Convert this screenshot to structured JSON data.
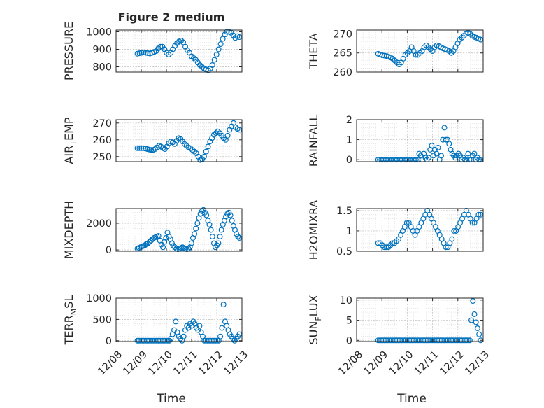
{
  "figure": {
    "title": "Figure 2 medium",
    "xlabel": "Time",
    "x_tick_labels": [
      "12/08",
      "12/09",
      "12/10",
      "12/11",
      "12/12",
      "12/13"
    ]
  },
  "colors": {
    "marker": "#0072BD",
    "axis": "#262626",
    "grid": "#bfbfbf",
    "minor_grid": "#dcdcdc"
  },
  "chart_data": [
    {
      "type": "scatter",
      "ylabel": "PRESSURE",
      "xlim": [
        8,
        13
      ],
      "ylim": [
        770,
        1010
      ],
      "yticks": [
        800,
        900,
        1000
      ],
      "ytick_labels": [
        "800",
        "900",
        "1000"
      ],
      "grid": true,
      "x_start": 8.85,
      "x_end": 12.9,
      "y": [
        875,
        878,
        880,
        882,
        880,
        878,
        876,
        880,
        885,
        890,
        905,
        915,
        915,
        900,
        880,
        870,
        880,
        900,
        920,
        935,
        945,
        950,
        940,
        915,
        895,
        880,
        860,
        850,
        840,
        825,
        810,
        800,
        790,
        785,
        780,
        790,
        810,
        840,
        870,
        900,
        930,
        960,
        985,
        1000,
        1000,
        995,
        980,
        965,
        975,
        970
      ]
    },
    {
      "type": "scatter",
      "ylabel": "THETA",
      "xlim": [
        8,
        13
      ],
      "ylim": [
        260,
        271
      ],
      "yticks": [
        260,
        265,
        270
      ],
      "ytick_labels": [
        "260",
        "265",
        "270"
      ],
      "grid": true,
      "x_start": 8.85,
      "x_end": 12.9,
      "y": [
        264.8,
        264.6,
        264.4,
        264.3,
        264.2,
        264.0,
        263.8,
        263.5,
        263.0,
        262.5,
        262.0,
        262.5,
        263.5,
        264.5,
        265.0,
        265.5,
        266.5,
        265.5,
        264.5,
        264.5,
        265.0,
        265.5,
        266.5,
        267.0,
        266.5,
        266.0,
        265.5,
        266.5,
        267.0,
        266.8,
        266.5,
        266.2,
        266.0,
        265.8,
        265.5,
        265.0,
        265.5,
        266.5,
        267.5,
        268.5,
        269.0,
        269.5,
        270.0,
        270.3,
        270.0,
        269.5,
        269.2,
        269.0,
        268.8,
        268.5
      ]
    },
    {
      "type": "scatter",
      "ylabel": "AIR_TEMP",
      "ylabel_parts": [
        "AIR",
        "T",
        "EMP"
      ],
      "xlim": [
        8,
        13
      ],
      "ylim": [
        247,
        272
      ],
      "yticks": [
        250,
        260,
        270
      ],
      "ytick_labels": [
        "250",
        "260",
        "270"
      ],
      "grid": true,
      "x_start": 8.85,
      "x_end": 12.9,
      "y": [
        255,
        255,
        255,
        255,
        254.8,
        254.5,
        254.2,
        254,
        254,
        254.5,
        255.5,
        256.5,
        256,
        255,
        254.5,
        256,
        258,
        259,
        258.5,
        257.5,
        259.5,
        261,
        260.5,
        259,
        257.5,
        256.5,
        255.5,
        255,
        254,
        253,
        252,
        250,
        248,
        248.5,
        250,
        253,
        256,
        259,
        261,
        263,
        264,
        265,
        264,
        262.5,
        261,
        260,
        262.5,
        266,
        268,
        270,
        267.5,
        266.5,
        266
      ]
    },
    {
      "type": "scatter",
      "ylabel": "RAINFALL",
      "xlim": [
        8,
        13
      ],
      "ylim": [
        -0.1,
        2.0
      ],
      "yticks": [
        0,
        1,
        2
      ],
      "ytick_labels": [
        "0",
        "1",
        "2"
      ],
      "grid": true,
      "x_start": 8.85,
      "x_end": 12.9,
      "y": [
        0,
        0,
        0,
        0,
        0,
        0,
        0,
        0,
        0,
        0,
        0,
        0,
        0,
        0,
        0,
        0,
        0,
        0,
        0,
        0,
        0,
        0,
        0,
        0,
        0,
        0,
        0.3,
        0.2,
        0,
        0.3,
        0.1,
        0,
        0.1,
        0.5,
        0.7,
        0.2,
        0.5,
        0.3,
        0.6,
        0,
        0.2,
        1.0,
        1.6,
        1.0,
        1.0,
        0.8,
        0.5,
        0.3,
        0.2,
        0.1,
        0.2,
        0.3,
        0.2,
        0,
        0.1,
        0,
        0,
        0.3,
        0,
        0,
        0.2,
        0.3,
        0,
        0.1,
        0,
        0
      ]
    },
    {
      "type": "scatter",
      "ylabel": "MIXDEPTH",
      "xlim": [
        8,
        13
      ],
      "ylim": [
        -100,
        3100
      ],
      "yticks": [
        0,
        2000
      ],
      "ytick_labels": [
        "0",
        "2000"
      ],
      "grid": true,
      "x_start": 8.85,
      "x_end": 12.9,
      "y": [
        100,
        150,
        200,
        250,
        300,
        350,
        450,
        500,
        600,
        700,
        800,
        900,
        950,
        1000,
        1050,
        700,
        400,
        200,
        600,
        900,
        1300,
        1000,
        800,
        500,
        300,
        200,
        100,
        50,
        100,
        150,
        200,
        150,
        100,
        50,
        100,
        200,
        500,
        900,
        1200,
        1600,
        2000,
        2400,
        2700,
        2900,
        3000,
        2800,
        2600,
        2200,
        1900,
        1500,
        1000,
        500,
        200,
        350,
        500,
        1000,
        1500,
        1900,
        2200,
        2500,
        2700,
        2800,
        2600,
        2200,
        1800,
        1500,
        1200,
        1000,
        900
      ]
    },
    {
      "type": "scatter",
      "ylabel": "H2OMIXRA",
      "xlim": [
        8,
        13
      ],
      "ylim": [
        0.5,
        1.55
      ],
      "yticks": [
        0.5,
        1.0,
        1.5
      ],
      "ytick_labels": [
        "0.5",
        "1",
        "1.5"
      ],
      "grid": true,
      "x_start": 8.85,
      "x_end": 12.9,
      "y": [
        0.7,
        0.7,
        0.65,
        0.6,
        0.6,
        0.6,
        0.65,
        0.7,
        0.7,
        0.75,
        0.8,
        0.9,
        1.0,
        1.1,
        1.2,
        1.2,
        1.1,
        1.0,
        0.9,
        1.0,
        1.1,
        1.2,
        1.3,
        1.4,
        1.5,
        1.4,
        1.3,
        1.2,
        1.1,
        1.0,
        0.9,
        0.8,
        0.7,
        0.6,
        0.6,
        0.7,
        0.8,
        1.0,
        1.0,
        1.1,
        1.2,
        1.3,
        1.4,
        1.5,
        1.4,
        1.3,
        1.2,
        1.2,
        1.3,
        1.4,
        1.4
      ]
    },
    {
      "type": "scatter",
      "ylabel": "TERR_MSL",
      "ylabel_parts": [
        "TERR",
        "M",
        "SL"
      ],
      "xlim": [
        8,
        13
      ],
      "ylim": [
        -20,
        1000
      ],
      "yticks": [
        0,
        500,
        1000
      ],
      "ytick_labels": [
        "0",
        "500",
        "1000"
      ],
      "grid": true,
      "x_start": 8.85,
      "x_end": 12.9,
      "y": [
        0,
        0,
        0,
        0,
        0,
        0,
        0,
        0,
        0,
        0,
        0,
        0,
        0,
        0,
        0,
        0,
        0,
        0,
        0,
        0,
        0,
        50,
        150,
        250,
        450,
        200,
        100,
        50,
        0,
        100,
        250,
        350,
        300,
        400,
        350,
        450,
        400,
        300,
        250,
        350,
        200,
        100,
        0,
        0,
        0,
        0,
        0,
        0,
        0,
        0,
        0,
        0,
        100,
        300,
        850,
        450,
        350,
        250,
        150,
        100,
        50,
        0,
        50,
        100,
        150
      ]
    },
    {
      "type": "scatter",
      "ylabel": "SUN_FLUX",
      "ylabel_parts": [
        "SUN",
        "F",
        "LUX"
      ],
      "xlim": [
        8,
        13
      ],
      "ylim": [
        -0.3,
        10.5
      ],
      "yticks": [
        0,
        5,
        10
      ],
      "ytick_labels": [
        "0",
        "5",
        "10"
      ],
      "grid": true,
      "x_start": 8.85,
      "x_end": 12.9,
      "y": [
        0,
        0,
        0,
        0,
        0,
        0,
        0,
        0,
        0,
        0,
        0,
        0,
        0,
        0,
        0,
        0,
        0,
        0,
        0,
        0,
        0,
        0,
        0,
        0,
        0,
        0,
        0,
        0,
        0,
        0,
        0,
        0,
        0,
        0,
        0,
        0,
        0,
        0,
        0,
        0,
        0,
        0,
        0,
        0,
        0,
        0,
        0,
        0,
        0,
        0,
        0,
        0,
        0,
        0,
        0,
        0,
        0,
        0,
        0,
        0,
        5.0,
        9.8,
        6.5,
        4.5,
        3.0,
        1.5,
        0
      ]
    }
  ]
}
